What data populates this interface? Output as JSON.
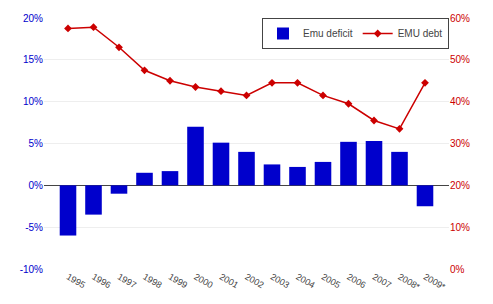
{
  "chart_data": {
    "type": "bar",
    "categories": [
      "1995",
      "1996",
      "1997",
      "1998",
      "1999",
      "2000",
      "2001",
      "2002",
      "2003",
      "2004",
      "2005",
      "2006",
      "2007",
      "2008*",
      "2009*"
    ],
    "series": [
      {
        "name": "Emu deficit",
        "type": "bar",
        "color": "#0000cc",
        "values": [
          -6.0,
          -3.5,
          -1.0,
          1.5,
          1.7,
          7.0,
          5.1,
          4.0,
          2.5,
          2.2,
          2.8,
          5.2,
          5.3,
          4.0,
          -2.5
        ]
      },
      {
        "name": "EMU debt",
        "type": "line",
        "axis": "y2",
        "color": "#cc0000",
        "marker": "diamond",
        "line_style": "solid",
        "values": [
          57.5,
          57.8,
          53.0,
          47.5,
          45.0,
          43.5,
          42.5,
          41.5,
          44.5,
          44.5,
          41.5,
          39.5,
          35.5,
          33.5,
          44.5
        ]
      }
    ],
    "ylim": [
      -10,
      20
    ],
    "yticks": [
      {
        "value": -10,
        "label": "-10%"
      },
      {
        "value": -5,
        "label": "-5%"
      },
      {
        "value": 0,
        "label": "0%"
      },
      {
        "value": 5,
        "label": "5%"
      },
      {
        "value": 10,
        "label": "10%"
      },
      {
        "value": 15,
        "label": "15%"
      },
      {
        "value": 20,
        "label": "20%"
      }
    ],
    "y2lim": [
      0,
      60
    ],
    "y2ticks": [
      {
        "value": 0,
        "label": "0%"
      },
      {
        "value": 10,
        "label": "10%"
      },
      {
        "value": 20,
        "label": "20%"
      },
      {
        "value": 30,
        "label": "30%"
      },
      {
        "value": 40,
        "label": "40%"
      },
      {
        "value": 50,
        "label": "50%"
      },
      {
        "value": 60,
        "label": "60%"
      }
    ],
    "grid": true,
    "legend": "upper right"
  }
}
